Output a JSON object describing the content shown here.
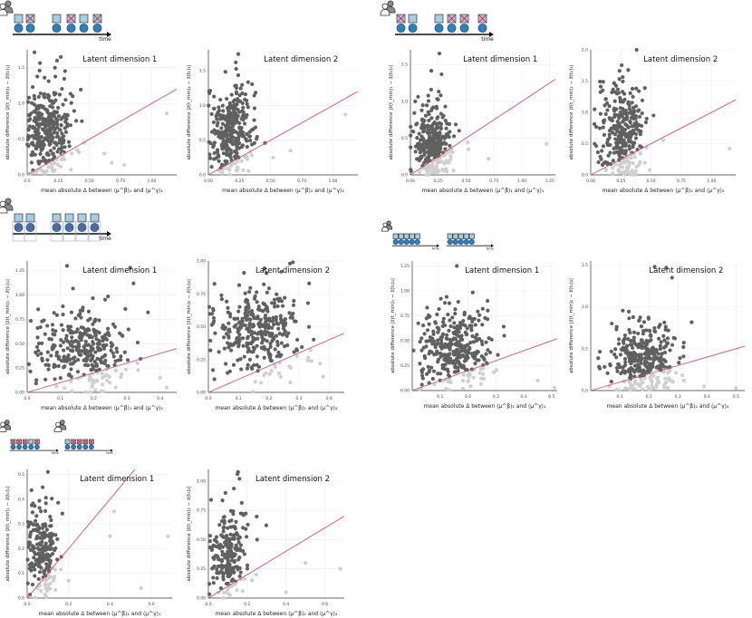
{
  "colors": {
    "above": "#606060",
    "below": "#cfcfcf",
    "diagonal": "#d0506a",
    "icon_box": "#a9cde0",
    "icon_circle": "#2f7fbf",
    "icon_cross": "#c0304a",
    "axis": "#333333",
    "grid": "#ececec"
  },
  "icons": {
    "person_icon": "two-persons-icon",
    "time_label": "time"
  },
  "chart_data": [
    {
      "type": "scatter",
      "title": "Latent dimension 1",
      "xlabel": "mean absolute Δ between ⟨μ^β⟩₁ and ⟨μ^γ⟩₁",
      "ylabel": "absolute difference |z̄(t_min)₁ − z̄(t₀)₁|",
      "xlim": [
        0,
        1.2
      ],
      "ylim": [
        0,
        1.75
      ],
      "xticks": [
        "0.0",
        "0.25",
        "0.50",
        "0.75",
        "1.00"
      ],
      "xtick_values": [
        0,
        0.25,
        0.5,
        0.75,
        1.0
      ],
      "yticks": [
        "0.0",
        "0.5",
        "1.0",
        "1.5"
      ],
      "ytick_values": [
        0,
        0.5,
        1.0,
        1.5
      ],
      "diagonal": [
        [
          0,
          0
        ],
        [
          1.2,
          1.2
        ]
      ],
      "cluster": {
        "cx": 0.16,
        "cy": 0.62,
        "sx": 0.09,
        "sy": 0.32,
        "n": 320,
        "seed": 11
      },
      "outliers": [
        [
          0.27,
          1.65
        ],
        [
          0.24,
          1.6
        ],
        [
          0.62,
          0.3
        ],
        [
          0.78,
          0.14
        ],
        [
          1.12,
          0.86
        ],
        [
          0.68,
          0.17
        ]
      ]
    },
    {
      "type": "scatter",
      "title": "Latent dimension 2",
      "xlabel": "mean absolute Δ between ⟨μ^β⟩₂ and ⟨μ^γ⟩₂",
      "ylabel": "absolute difference |z̄(t_min)₂ − z̄(t₀)₂|",
      "xlim": [
        0,
        1.2
      ],
      "ylim": [
        0,
        1.8
      ],
      "xticks": [
        "0.00",
        "0.25",
        "0.50",
        "0.75",
        "1.00"
      ],
      "xtick_values": [
        0,
        0.25,
        0.5,
        0.75,
        1.0
      ],
      "yticks": [
        "0.0",
        "0.5",
        "1.0",
        "1.5"
      ],
      "ytick_values": [
        0,
        0.5,
        1.0,
        1.5
      ],
      "diagonal": [
        [
          0,
          0
        ],
        [
          1.2,
          1.2
        ]
      ],
      "cluster": {
        "cx": 0.18,
        "cy": 0.62,
        "sx": 0.09,
        "sy": 0.33,
        "n": 320,
        "seed": 12
      },
      "outliers": [
        [
          0.24,
          1.74
        ],
        [
          0.22,
          1.62
        ],
        [
          0.66,
          0.35
        ],
        [
          1.1,
          0.87
        ],
        [
          0.52,
          0.25
        ]
      ]
    },
    {
      "type": "scatter",
      "title": "Latent dimension 1",
      "xlabel": "mean absolute Δ between ⟨μ^β⟩₁ and ⟨μ^γ⟩₁",
      "ylabel": "absolute difference |z̄(t_min)₁ − z̄(t₀)₁|",
      "xlim": [
        0,
        1.3
      ],
      "ylim": [
        0,
        1.7
      ],
      "xticks": [
        "0.00",
        "0.25",
        "0.50",
        "0.75",
        "1.00",
        "1.25"
      ],
      "xtick_values": [
        0,
        0.25,
        0.5,
        0.75,
        1.0,
        1.25
      ],
      "yticks": [
        "0.0",
        "0.5",
        "1.0",
        "1.5"
      ],
      "ytick_values": [
        0,
        0.5,
        1.0,
        1.5
      ],
      "diagonal": [
        [
          0,
          0
        ],
        [
          1.3,
          1.3
        ]
      ],
      "cluster": {
        "cx": 0.2,
        "cy": 0.42,
        "sx": 0.09,
        "sy": 0.28,
        "n": 320,
        "seed": 13
      },
      "outliers": [
        [
          0.26,
          1.65
        ],
        [
          1.22,
          0.42
        ],
        [
          0.52,
          0.35
        ],
        [
          0.7,
          0.22
        ]
      ]
    },
    {
      "type": "scatter",
      "title": "Latent dimension 2",
      "xlabel": "mean absolute Δ between ⟨μ^β⟩₂ and ⟨μ^γ⟩₂",
      "ylabel": "absolute difference |z̄(t_min)₂ − z̄(t₀)₂|",
      "xlim": [
        0,
        1.2
      ],
      "ylim": [
        0,
        2.0
      ],
      "xticks": [
        "0.00",
        "0.25",
        "0.50",
        "0.75",
        "1.00"
      ],
      "xtick_values": [
        0,
        0.25,
        0.5,
        0.75,
        1.0
      ],
      "yticks": [
        "0.0",
        "0.5",
        "1.0",
        "1.5",
        "2.0"
      ],
      "ytick_values": [
        0,
        0.5,
        1.0,
        1.5,
        2.0
      ],
      "diagonal": [
        [
          0,
          0
        ],
        [
          1.2,
          1.2
        ]
      ],
      "cluster": {
        "cx": 0.25,
        "cy": 0.65,
        "sx": 0.1,
        "sy": 0.4,
        "n": 320,
        "seed": 14
      },
      "outliers": [
        [
          0.38,
          2.0
        ],
        [
          0.52,
          0.95
        ],
        [
          0.6,
          0.55
        ],
        [
          1.15,
          0.42
        ]
      ]
    },
    {
      "type": "scatter",
      "title": "Latent dimension 1",
      "xlabel": "mean absolute Δ between ⟨μ^β⟩₁ and ⟨μ^γ⟩₁",
      "ylabel": "absolute difference |z̄(t_min)₁ − z̄(t₀)₁|",
      "xlim": [
        0,
        0.45
      ],
      "ylim": [
        0,
        1.35
      ],
      "xticks": [
        "0.0",
        "0.1",
        "0.2",
        "0.3",
        "0.4"
      ],
      "xtick_values": [
        0,
        0.1,
        0.2,
        0.3,
        0.4
      ],
      "yticks": [
        "0.00",
        "0.25",
        "0.50",
        "0.75",
        "1.00",
        "1.25"
      ],
      "ytick_values": [
        0,
        0.25,
        0.5,
        0.75,
        1.0,
        1.25
      ],
      "diagonal": [
        [
          0,
          0
        ],
        [
          0.45,
          0.45
        ]
      ],
      "cluster": {
        "cx": 0.16,
        "cy": 0.45,
        "sx": 0.07,
        "sy": 0.2,
        "n": 330,
        "seed": 15
      },
      "outliers": [
        [
          0.12,
          1.3
        ],
        [
          0.31,
          1.28
        ],
        [
          0.32,
          1.12
        ],
        [
          0.4,
          0.15
        ],
        [
          0.42,
          0.05
        ]
      ]
    },
    {
      "type": "scatter",
      "title": "Latent dimension 2",
      "xlabel": "mean absolute Δ between ⟨μ^β⟩₂ and ⟨μ^γ⟩₂",
      "ylabel": "absolute difference |z̄(t_min)₂ − z̄(t₀)₂|",
      "xlim": [
        0,
        0.45
      ],
      "ylim": [
        0,
        1.0
      ],
      "xticks": [
        "0.0",
        "0.1",
        "0.2",
        "0.3",
        "0.4"
      ],
      "xtick_values": [
        0,
        0.1,
        0.2,
        0.3,
        0.4
      ],
      "yticks": [
        "0.00",
        "0.25",
        "0.50",
        "0.75",
        "1.00"
      ],
      "ytick_values": [
        0,
        0.25,
        0.5,
        0.75,
        1.0
      ],
      "diagonal": [
        [
          0,
          0
        ],
        [
          0.45,
          0.45
        ]
      ],
      "cluster": {
        "cx": 0.16,
        "cy": 0.46,
        "sx": 0.07,
        "sy": 0.17,
        "n": 330,
        "seed": 16
      },
      "outliers": [
        [
          0.27,
          0.98
        ],
        [
          0.28,
          0.99
        ],
        [
          0.37,
          0.22
        ],
        [
          0.38,
          0.12
        ],
        [
          0.02,
          0.1
        ]
      ]
    },
    {
      "type": "scatter",
      "title": "Latent dimension 1",
      "xlabel": "mean absolute Δ between ⟨μ^β⟩₁ and ⟨μ^γ⟩₁",
      "ylabel": "absolute difference |z̄(t_min)₁ − z̄(t₀)₁|",
      "xlim": [
        0,
        0.52
      ],
      "ylim": [
        0,
        1.3
      ],
      "xticks": [
        "0.1",
        "0.2",
        "0.3",
        "0.4",
        "0.5"
      ],
      "xtick_values": [
        0.1,
        0.2,
        0.3,
        0.4,
        0.5
      ],
      "yticks": [
        "0.00",
        "0.25",
        "0.50",
        "0.75",
        "1.00",
        "1.25"
      ],
      "ytick_values": [
        0,
        0.25,
        0.5,
        0.75,
        1.0,
        1.25
      ],
      "diagonal": [
        [
          0,
          0
        ],
        [
          0.52,
          0.52
        ]
      ],
      "cluster": {
        "cx": 0.15,
        "cy": 0.4,
        "sx": 0.06,
        "sy": 0.2,
        "n": 340,
        "seed": 17
      },
      "outliers": [
        [
          0.16,
          1.25
        ],
        [
          0.27,
          0.9
        ],
        [
          0.33,
          0.55
        ],
        [
          0.45,
          0.1
        ],
        [
          0.51,
          0.03
        ]
      ]
    },
    {
      "type": "scatter",
      "title": "Latent dimension 2",
      "xlabel": "mean absolute Δ between ⟨μ^β⟩₂ and ⟨μ^γ⟩₂",
      "ylabel": "absolute difference |z̄(t_min)₂ − z̄(t₀)₂|",
      "xlim": [
        0,
        0.53
      ],
      "ylim": [
        0,
        1.55
      ],
      "xticks": [
        "0.1",
        "0.2",
        "0.3",
        "0.4",
        "0.5"
      ],
      "xtick_values": [
        0.1,
        0.2,
        0.3,
        0.4,
        0.5
      ],
      "yticks": [
        "0.0",
        "0.5",
        "1.0",
        "1.5"
      ],
      "ytick_values": [
        0,
        0.5,
        1.0,
        1.5
      ],
      "diagonal": [
        [
          0,
          0
        ],
        [
          0.53,
          0.53
        ]
      ],
      "cluster": {
        "cx": 0.18,
        "cy": 0.35,
        "sx": 0.06,
        "sy": 0.25,
        "n": 340,
        "seed": 18
      },
      "outliers": [
        [
          0.22,
          1.48
        ],
        [
          0.26,
          1.47
        ],
        [
          0.28,
          1.35
        ],
        [
          0.39,
          0.05
        ],
        [
          0.5,
          0.03
        ]
      ]
    },
    {
      "type": "scatter",
      "title": "Latent dimension 1",
      "xlabel": "mean absolute Δ between ⟨μ^β⟩₁ and ⟨μ^γ⟩₁",
      "ylabel": "absolute difference |z̄(t_min)₁ − z̄(t₀)₁|",
      "xlim": [
        0,
        0.7
      ],
      "ylim": [
        0,
        0.52
      ],
      "xticks": [
        "0.0",
        "0.2",
        "0.4",
        "0.6"
      ],
      "xtick_values": [
        0,
        0.2,
        0.4,
        0.6
      ],
      "yticks": [
        "0.0",
        "0.1",
        "0.2",
        "0.3",
        "0.4",
        "0.5"
      ],
      "ytick_values": [
        0,
        0.1,
        0.2,
        0.3,
        0.4,
        0.5
      ],
      "diagonal": [
        [
          0,
          0
        ],
        [
          0.52,
          0.52
        ]
      ],
      "cluster": {
        "cx": 0.07,
        "cy": 0.2,
        "sx": 0.04,
        "sy": 0.09,
        "n": 220,
        "seed": 19
      },
      "outliers": [
        [
          0.1,
          0.51
        ],
        [
          0.2,
          0.07
        ],
        [
          0.4,
          0.25
        ],
        [
          0.55,
          0.04
        ],
        [
          0.68,
          0.25
        ],
        [
          0.42,
          0.35
        ]
      ]
    },
    {
      "type": "scatter",
      "title": "Latent dimension 2",
      "xlabel": "mean absolute Δ between ⟨μ^β⟩₂ and ⟨μ^γ⟩₂",
      "ylabel": "absolute difference |z̄(t_min)₂ − z̄(t₀)₂|",
      "xlim": [
        0,
        0.7
      ],
      "ylim": [
        0,
        1.1
      ],
      "xticks": [
        "0.0",
        "0.2",
        "0.4",
        "0.6"
      ],
      "xtick_values": [
        0,
        0.2,
        0.4,
        0.6
      ],
      "yticks": [
        "0.00",
        "0.25",
        "0.50",
        "0.75",
        "1.00"
      ],
      "ytick_values": [
        0,
        0.25,
        0.5,
        0.75,
        1.0
      ],
      "diagonal": [
        [
          0,
          0
        ],
        [
          0.7,
          0.7
        ]
      ],
      "cluster": {
        "cx": 0.1,
        "cy": 0.38,
        "sx": 0.05,
        "sy": 0.2,
        "n": 220,
        "seed": 20
      },
      "outliers": [
        [
          0.15,
          1.06
        ],
        [
          0.16,
          1.02
        ],
        [
          0.4,
          0.05
        ],
        [
          0.68,
          0.25
        ],
        [
          0.5,
          0.3
        ]
      ]
    }
  ]
}
